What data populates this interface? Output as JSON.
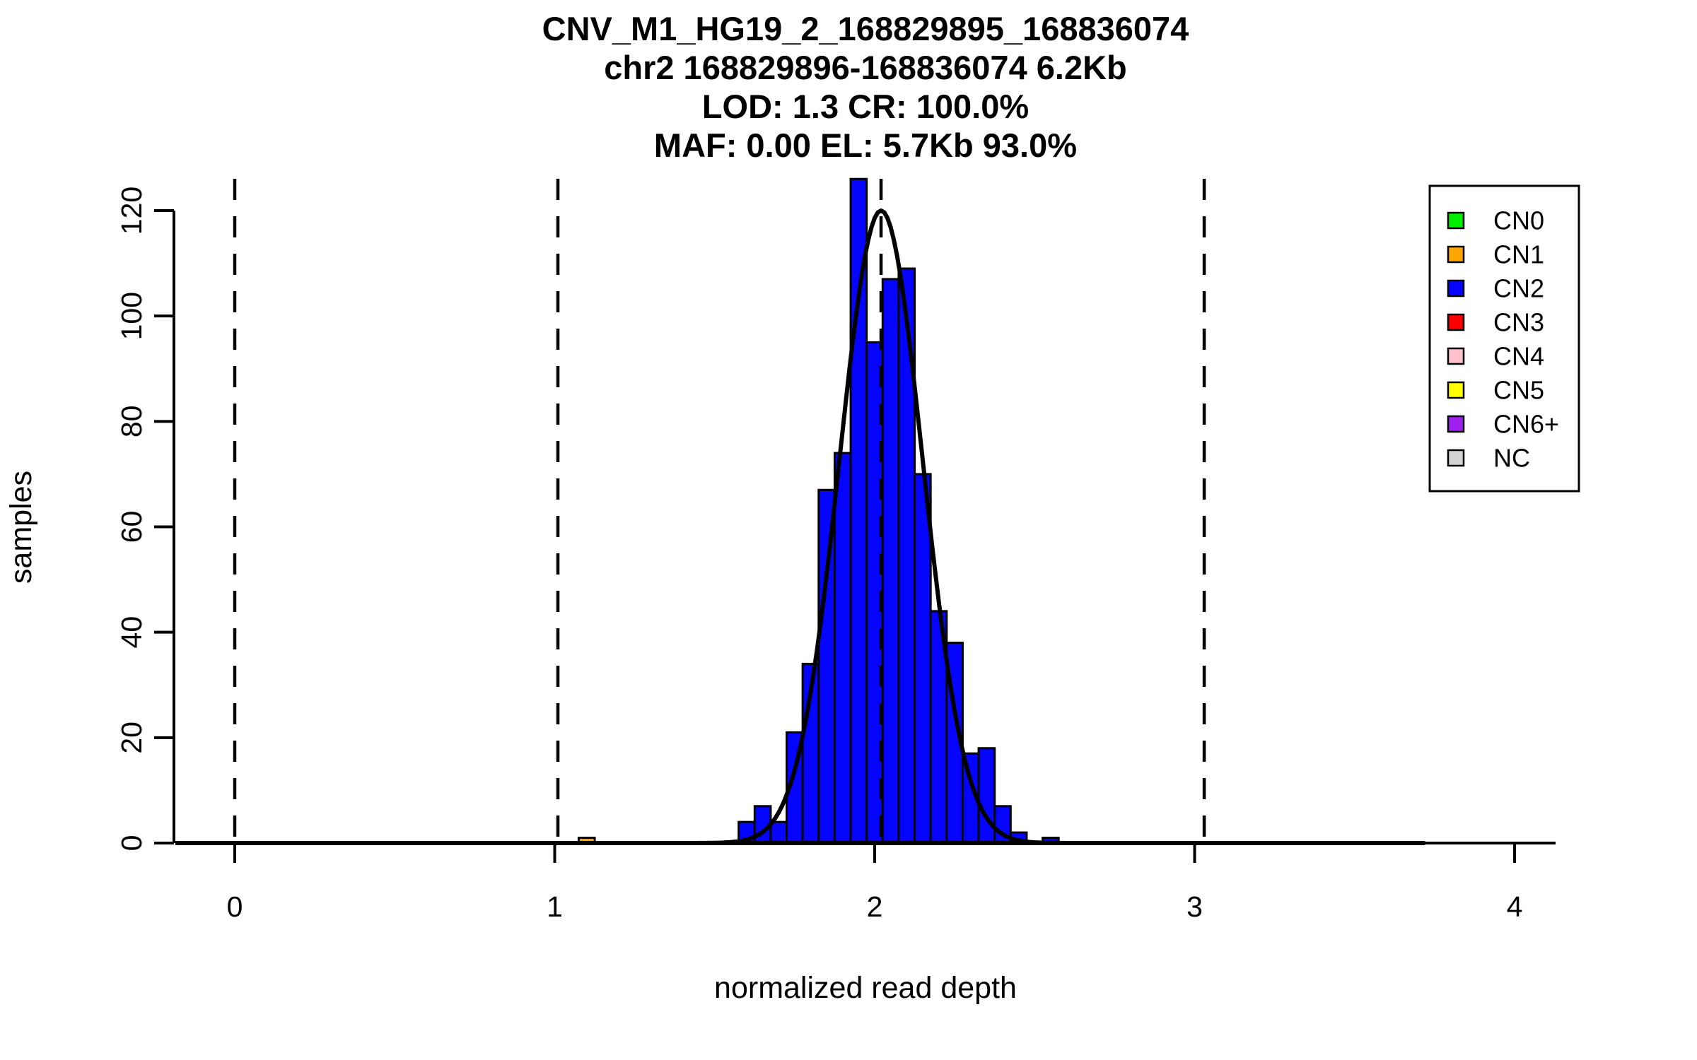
{
  "figure": {
    "title_lines": [
      "CNV_M1_HG19_2_168829895_168836074",
      "chr2 168829896-168836074 6.2Kb",
      "LOD: 1.3 CR: 100.0%",
      "MAF: 0.00 EL: 5.7Kb 93.0%"
    ]
  },
  "chart_data": {
    "type": "bar",
    "title": "CNV_M1_HG19_2_168829895_168836074",
    "subtitle_lines": [
      "chr2 168829896-168836074 6.2Kb",
      "LOD: 1.3 CR: 100.0%",
      "MAF: 0.00 EL: 5.7Kb 93.0%"
    ],
    "xlabel": "normalized read depth",
    "ylabel": "samples",
    "xlim": [
      -0.2,
      4.25
    ],
    "ylim": [
      0,
      127
    ],
    "x_ticks": [
      0,
      1,
      2,
      3,
      4
    ],
    "y_ticks": [
      0,
      20,
      40,
      60,
      80,
      100,
      120
    ],
    "grid": false,
    "legend_position": "top-right",
    "bin_width": 0.05,
    "bars": [
      {
        "x0": 1.075,
        "count": 1,
        "cn": "CN1"
      },
      {
        "x0": 1.575,
        "count": 4,
        "cn": "CN2"
      },
      {
        "x0": 1.625,
        "count": 7,
        "cn": "CN2"
      },
      {
        "x0": 1.675,
        "count": 4,
        "cn": "CN2"
      },
      {
        "x0": 1.725,
        "count": 21,
        "cn": "CN2"
      },
      {
        "x0": 1.775,
        "count": 34,
        "cn": "CN2"
      },
      {
        "x0": 1.825,
        "count": 67,
        "cn": "CN2"
      },
      {
        "x0": 1.875,
        "count": 74,
        "cn": "CN2"
      },
      {
        "x0": 1.925,
        "count": 126,
        "cn": "CN2"
      },
      {
        "x0": 1.975,
        "count": 95,
        "cn": "CN2"
      },
      {
        "x0": 2.025,
        "count": 107,
        "cn": "CN2"
      },
      {
        "x0": 2.075,
        "count": 109,
        "cn": "CN2"
      },
      {
        "x0": 2.125,
        "count": 70,
        "cn": "CN2"
      },
      {
        "x0": 2.175,
        "count": 44,
        "cn": "CN2"
      },
      {
        "x0": 2.225,
        "count": 38,
        "cn": "CN2"
      },
      {
        "x0": 2.275,
        "count": 17,
        "cn": "CN2"
      },
      {
        "x0": 2.325,
        "count": 18,
        "cn": "CN2"
      },
      {
        "x0": 2.375,
        "count": 7,
        "cn": "CN2"
      },
      {
        "x0": 2.425,
        "count": 2,
        "cn": "CN2"
      },
      {
        "x0": 2.525,
        "count": 1,
        "cn": "CN2"
      }
    ],
    "fit_curve": {
      "mean": 2.02,
      "sd": 0.13,
      "peak": 120,
      "color": "#000000"
    },
    "dashed_guides_x": [
      0,
      1.01,
      2.02,
      3.03
    ],
    "flat_density_span": [
      -0.185,
      3.72
    ],
    "cn_colors": {
      "CN0": "#00EE00",
      "CN1": "#FFA500",
      "CN2": "#0404FF",
      "CN3": "#FF0000",
      "CN4": "#FFC0CB",
      "CN5": "#FFFF00",
      "CN6+": "#A020F0",
      "NC": "#D3D3D3"
    },
    "legend_items": [
      {
        "label": "CN0",
        "color": "#00EE00"
      },
      {
        "label": "CN1",
        "color": "#FFA500"
      },
      {
        "label": "CN2",
        "color": "#0404FF"
      },
      {
        "label": "CN3",
        "color": "#FF0000"
      },
      {
        "label": "CN4",
        "color": "#FFC0CB"
      },
      {
        "label": "CN5",
        "color": "#FFFF00"
      },
      {
        "label": "CN6+",
        "color": "#A020F0"
      },
      {
        "label": "NC",
        "color": "#D3D3D3"
      }
    ]
  }
}
